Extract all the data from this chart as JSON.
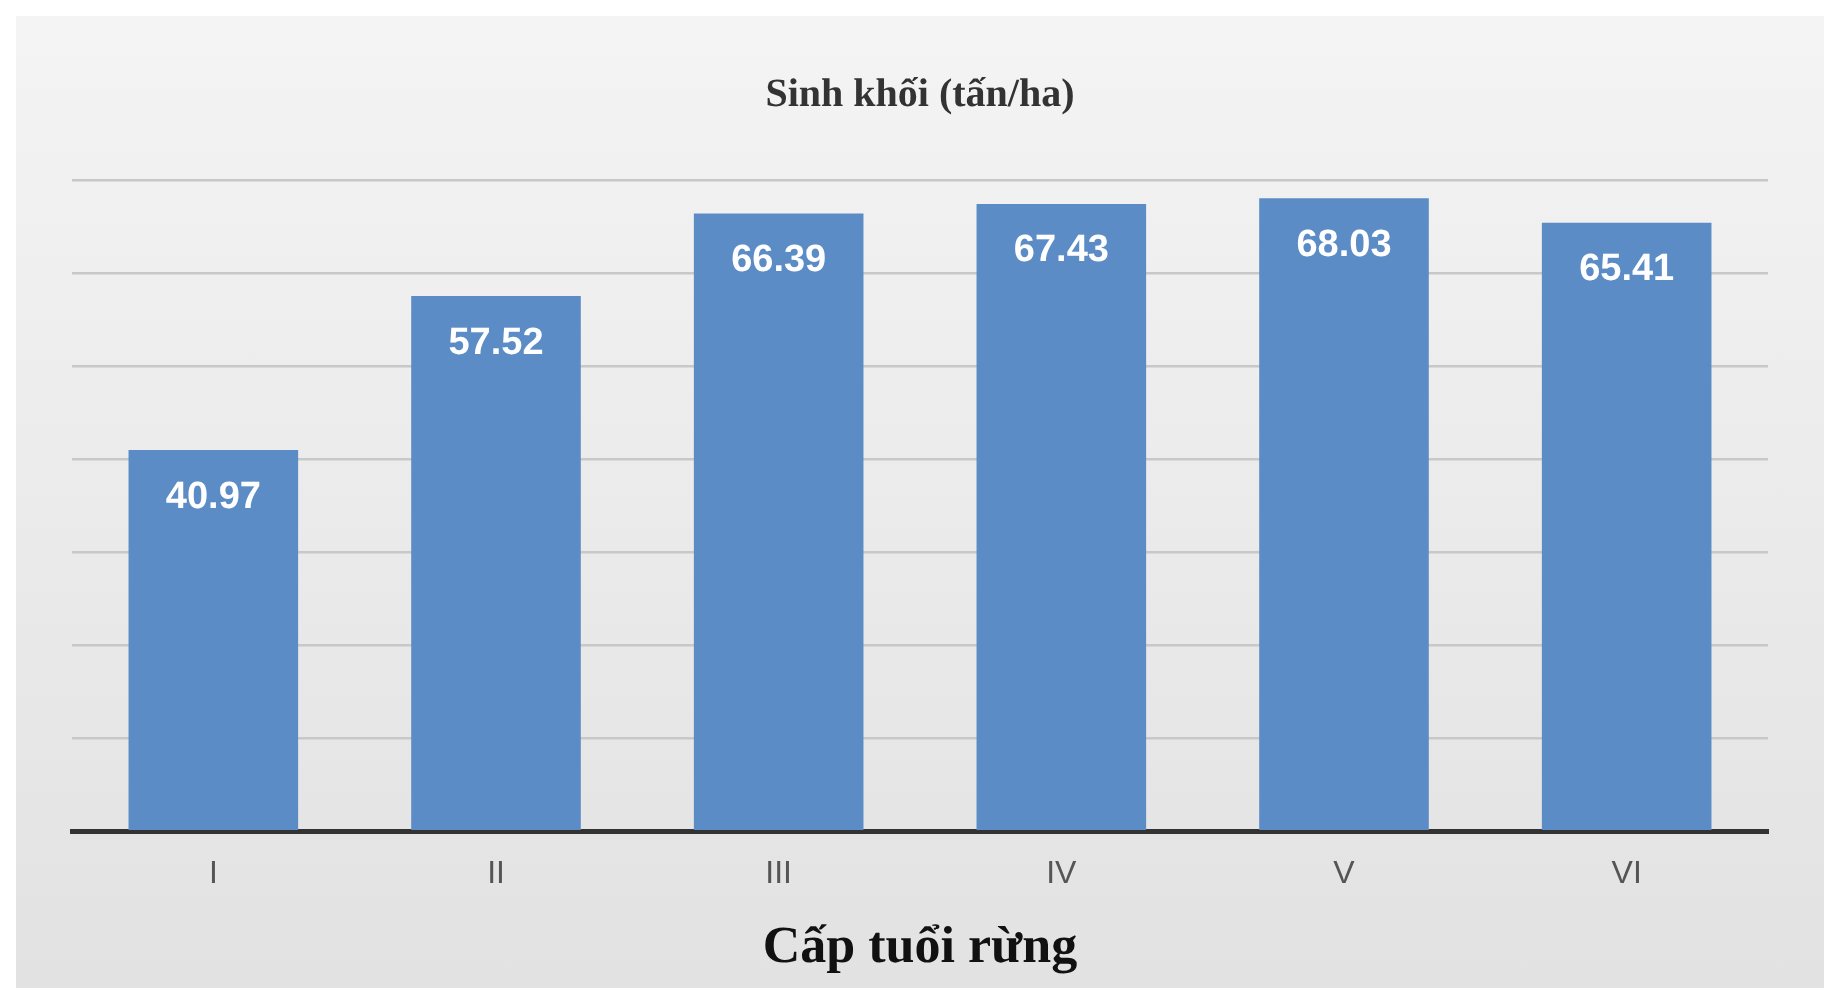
{
  "chart_data": {
    "type": "bar",
    "title": "Sinh khối (tấn/ha)",
    "xlabel": "Cấp tuổi rừng",
    "categories": [
      "I",
      "II",
      "III",
      "IV",
      "V",
      "VI"
    ],
    "values": [
      40.97,
      57.52,
      66.39,
      67.43,
      68.03,
      65.41
    ],
    "color": "#5b8cc6",
    "ylim": [
      0,
      70
    ],
    "yticks": [
      {
        "value": 0,
        "label": null
      },
      {
        "value": 10,
        "label": null
      },
      {
        "value": 20,
        "label": null
      },
      {
        "value": 30,
        "label": null
      },
      {
        "value": 40,
        "label": null
      },
      {
        "value": 50,
        "label": null
      },
      {
        "value": 60,
        "label": null
      },
      {
        "value": 70,
        "label": null
      }
    ],
    "tick_labels": "x",
    "grid": "y",
    "data_labels": true,
    "legend": false
  }
}
